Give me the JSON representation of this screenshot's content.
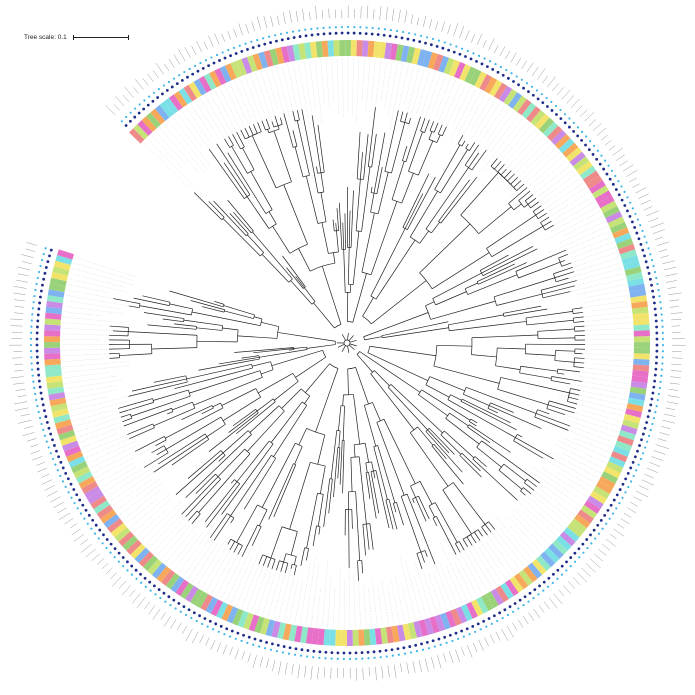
{
  "tree_scale": {
    "label": "Tree scale: 0.1"
  },
  "tree": {
    "layout": "circular",
    "rings": [
      "leaf-labels",
      "dashed-guides",
      "colored-label-ring",
      "dark-blue-dot-ring",
      "light-blue-dot-ring",
      "outer-leaf-labels"
    ],
    "palette": {
      "branch": "#222222",
      "guide": "#bdbdbd",
      "dot_dark": "#1f2d8a",
      "dot_light": "#3fb6e8",
      "label_colors": [
        "#c6e377",
        "#7fb2f0",
        "#c98be6",
        "#f7a85a",
        "#8fe8c8",
        "#e86fc7",
        "#f2e36b",
        "#9ad27a",
        "#ef8a8a",
        "#7be0e6"
      ]
    }
  }
}
